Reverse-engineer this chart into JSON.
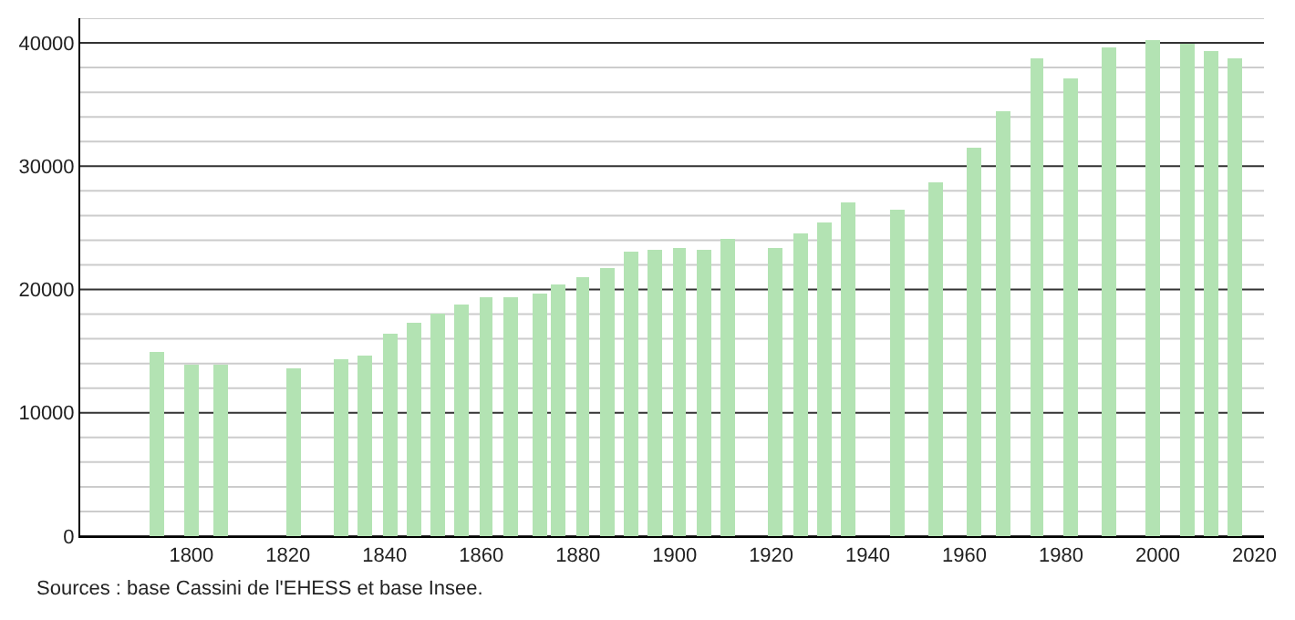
{
  "chart_data": {
    "type": "bar",
    "x": [
      1793,
      1800,
      1806,
      1821,
      1831,
      1836,
      1841,
      1846,
      1851,
      1856,
      1861,
      1866,
      1872,
      1876,
      1881,
      1886,
      1891,
      1896,
      1901,
      1906,
      1911,
      1921,
      1926,
      1931,
      1936,
      1946,
      1954,
      1962,
      1968,
      1975,
      1982,
      1990,
      1999,
      2006,
      2011,
      2016
    ],
    "values": [
      15000,
      13900,
      13900,
      13600,
      14400,
      14600,
      16400,
      17300,
      18100,
      18800,
      19400,
      19400,
      19600,
      20400,
      21000,
      21800,
      23000,
      23200,
      23300,
      23200,
      24100,
      23300,
      24600,
      25400,
      27000,
      26400,
      28700,
      31500,
      34500,
      38800,
      37100,
      39600,
      40300,
      40000,
      39300,
      38700
    ],
    "color": "#b3e3b3",
    "xlim": [
      1777,
      2022
    ],
    "xticks": [
      1800,
      1820,
      1840,
      1860,
      1880,
      1900,
      1920,
      1940,
      1960,
      1980,
      2000,
      2020
    ],
    "ylim": [
      0,
      42000
    ],
    "yticks": [
      0,
      {
        "value": 2000,
        "label": null
      },
      {
        "value": 4000,
        "label": null
      },
      {
        "value": 6000,
        "label": null
      },
      {
        "value": 8000,
        "label": null
      },
      10000,
      {
        "value": 12000,
        "label": null
      },
      {
        "value": 14000,
        "label": null
      },
      {
        "value": 16000,
        "label": null
      },
      {
        "value": 18000,
        "label": null
      },
      20000,
      {
        "value": 22000,
        "label": null
      },
      {
        "value": 24000,
        "label": null
      },
      {
        "value": 26000,
        "label": null
      },
      {
        "value": 28000,
        "label": null
      },
      30000,
      {
        "value": 32000,
        "label": null
      },
      {
        "value": 34000,
        "label": null
      },
      {
        "value": 36000,
        "label": null
      },
      {
        "value": 38000,
        "label": null
      },
      40000,
      {
        "value": 42000,
        "label": null
      }
    ],
    "grid": "y",
    "annotations": [
      "Sources : base Cassini de l'EHESS et base Insee."
    ]
  }
}
